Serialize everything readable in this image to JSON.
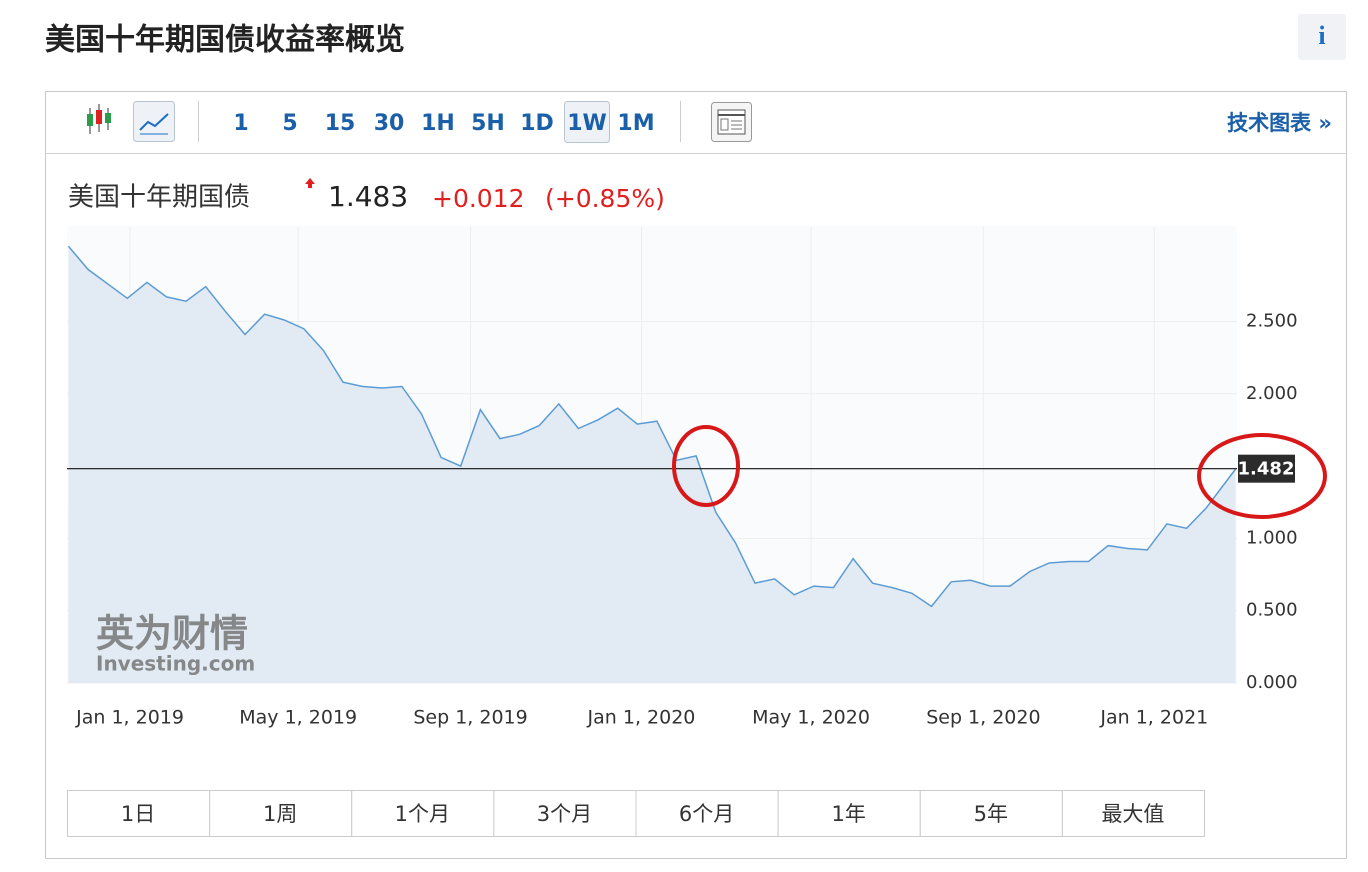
{
  "header": {
    "title": "美国十年期国债收益率概览",
    "info": "i"
  },
  "toolbar": {
    "intervals": [
      "1",
      "5",
      "15",
      "30",
      "1H",
      "5H",
      "1D",
      "1W",
      "1M"
    ],
    "selected": "1W",
    "link": "技术图表 »"
  },
  "quote": {
    "name": "美国十年期国债",
    "price": "1.483",
    "change": "+0.012",
    "change_pct": "(+0.85%)"
  },
  "watermark": {
    "brand": "英为财情",
    "site": "Investing.com"
  },
  "ranges": [
    "1日",
    "1周",
    "1个月",
    "3个月",
    "6个月",
    "1年",
    "5年",
    "最大值"
  ],
  "chart_data": {
    "type": "line",
    "x": [
      "2018-11-18",
      "2018-12-02",
      "2018-12-16",
      "2018-12-30",
      "2019-01-13",
      "2019-01-27",
      "2019-02-10",
      "2019-02-24",
      "2019-03-10",
      "2019-03-24",
      "2019-04-07",
      "2019-04-21",
      "2019-05-05",
      "2019-05-19",
      "2019-06-02",
      "2019-06-16",
      "2019-06-30",
      "2019-07-14",
      "2019-07-28",
      "2019-08-11",
      "2019-08-25",
      "2019-09-08",
      "2019-09-22",
      "2019-10-06",
      "2019-10-20",
      "2019-11-03",
      "2019-11-17",
      "2019-12-01",
      "2019-12-15",
      "2019-12-29",
      "2020-01-12",
      "2020-01-26",
      "2020-02-09",
      "2020-02-23",
      "2020-03-08",
      "2020-03-22",
      "2020-04-05",
      "2020-04-19",
      "2020-05-03",
      "2020-05-17",
      "2020-05-31",
      "2020-06-14",
      "2020-06-28",
      "2020-07-12",
      "2020-07-26",
      "2020-08-09",
      "2020-08-23",
      "2020-09-06",
      "2020-09-20",
      "2020-10-04",
      "2020-10-18",
      "2020-11-01",
      "2020-11-15",
      "2020-11-29",
      "2020-12-13",
      "2020-12-27",
      "2021-01-10",
      "2021-01-24",
      "2021-02-07",
      "2021-02-21",
      "2021-02-28"
    ],
    "series": [
      {
        "color": "#5b9bd5",
        "values": [
          3.02,
          2.86,
          2.76,
          2.66,
          2.77,
          2.67,
          2.64,
          2.74,
          2.57,
          2.41,
          2.55,
          2.51,
          2.45,
          2.3,
          2.08,
          2.05,
          2.04,
          2.05,
          1.86,
          1.56,
          1.5,
          1.89,
          1.69,
          1.72,
          1.78,
          1.93,
          1.76,
          1.82,
          1.9,
          1.79,
          1.81,
          1.54,
          1.57,
          1.18,
          0.97,
          0.69,
          0.72,
          0.61,
          0.67,
          0.66,
          0.86,
          0.69,
          0.66,
          0.62,
          0.53,
          0.7,
          0.71,
          0.67,
          0.67,
          0.77,
          0.83,
          0.84,
          0.84,
          0.95,
          0.93,
          0.92,
          1.1,
          1.07,
          1.21,
          1.39,
          1.48
        ]
      }
    ],
    "xlim": [
      "2018-11-17",
      "2021-03-01"
    ],
    "xticks": [
      {
        "value": "2019-01-01",
        "label": "Jan 1, 2019"
      },
      {
        "value": "2019-05-01",
        "label": "May 1, 2019"
      },
      {
        "value": "2019-09-01",
        "label": "Sep 1, 2019"
      },
      {
        "value": "2020-01-01",
        "label": "Jan 1, 2020"
      },
      {
        "value": "2020-05-01",
        "label": "May 1, 2020"
      },
      {
        "value": "2020-09-01",
        "label": "Sep 1, 2020"
      },
      {
        "value": "2021-01-01",
        "label": "Jan 1, 2021"
      }
    ],
    "ylim": [
      0,
      3.16
    ],
    "yticks": [
      {
        "value": 0,
        "label": "0.000"
      },
      {
        "value": 0.5,
        "label": "0.500"
      },
      {
        "value": 1,
        "label": "1.000"
      },
      {
        "value": 2,
        "label": "2.000"
      },
      {
        "value": 2.5,
        "label": "2.500"
      }
    ],
    "price_line": 1.482,
    "grid": true
  }
}
